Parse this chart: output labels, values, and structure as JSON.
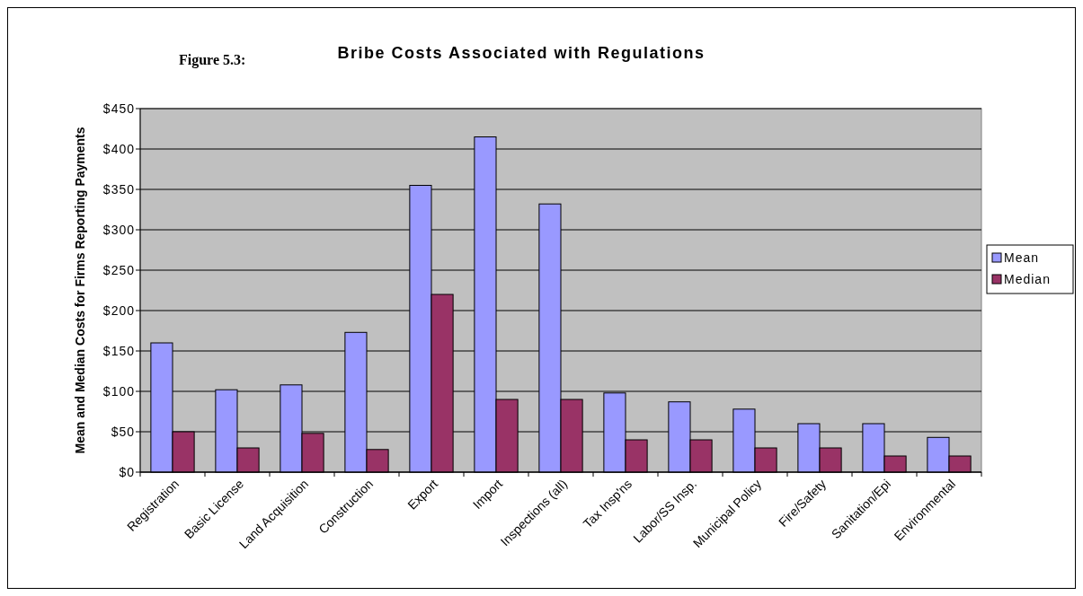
{
  "chart_data": {
    "type": "bar",
    "title": "Bribe Costs Associated with Regulations",
    "annotations": [
      "Figure 5.3:"
    ],
    "ylabel": "Mean and Median Costs for Firms Reporting Payments",
    "categories": [
      "Registration",
      "Basic License",
      "Land Acquisition",
      "Construction",
      "Export",
      "Import",
      "Inspections (all)",
      "Tax Insp'ns",
      "Labor/SS Insp.",
      "Municipal Policy",
      "Fire/Safety",
      "Sanitation/Epi",
      "Environmental"
    ],
    "series": [
      {
        "name": "Mean",
        "color": "#9999ff",
        "values": [
          160,
          102,
          108,
          173,
          355,
          415,
          332,
          98,
          87,
          78,
          60,
          60,
          43
        ]
      },
      {
        "name": "Median",
        "color": "#993366",
        "values": [
          50,
          30,
          48,
          28,
          220,
          90,
          90,
          40,
          40,
          30,
          30,
          20,
          20
        ]
      }
    ],
    "ylim": [
      0,
      450
    ],
    "yticks": [
      {
        "value": 0,
        "label": "$0"
      },
      {
        "value": 50,
        "label": "$50"
      },
      {
        "value": 100,
        "label": "$100"
      },
      {
        "value": 150,
        "label": "$150"
      },
      {
        "value": 200,
        "label": "$200"
      },
      {
        "value": 250,
        "label": "$250"
      },
      {
        "value": 300,
        "label": "$300"
      },
      {
        "value": 350,
        "label": "$350"
      },
      {
        "value": 400,
        "label": "$400"
      },
      {
        "value": 450,
        "label": "$450"
      }
    ],
    "grid": "y",
    "legend": "right"
  }
}
